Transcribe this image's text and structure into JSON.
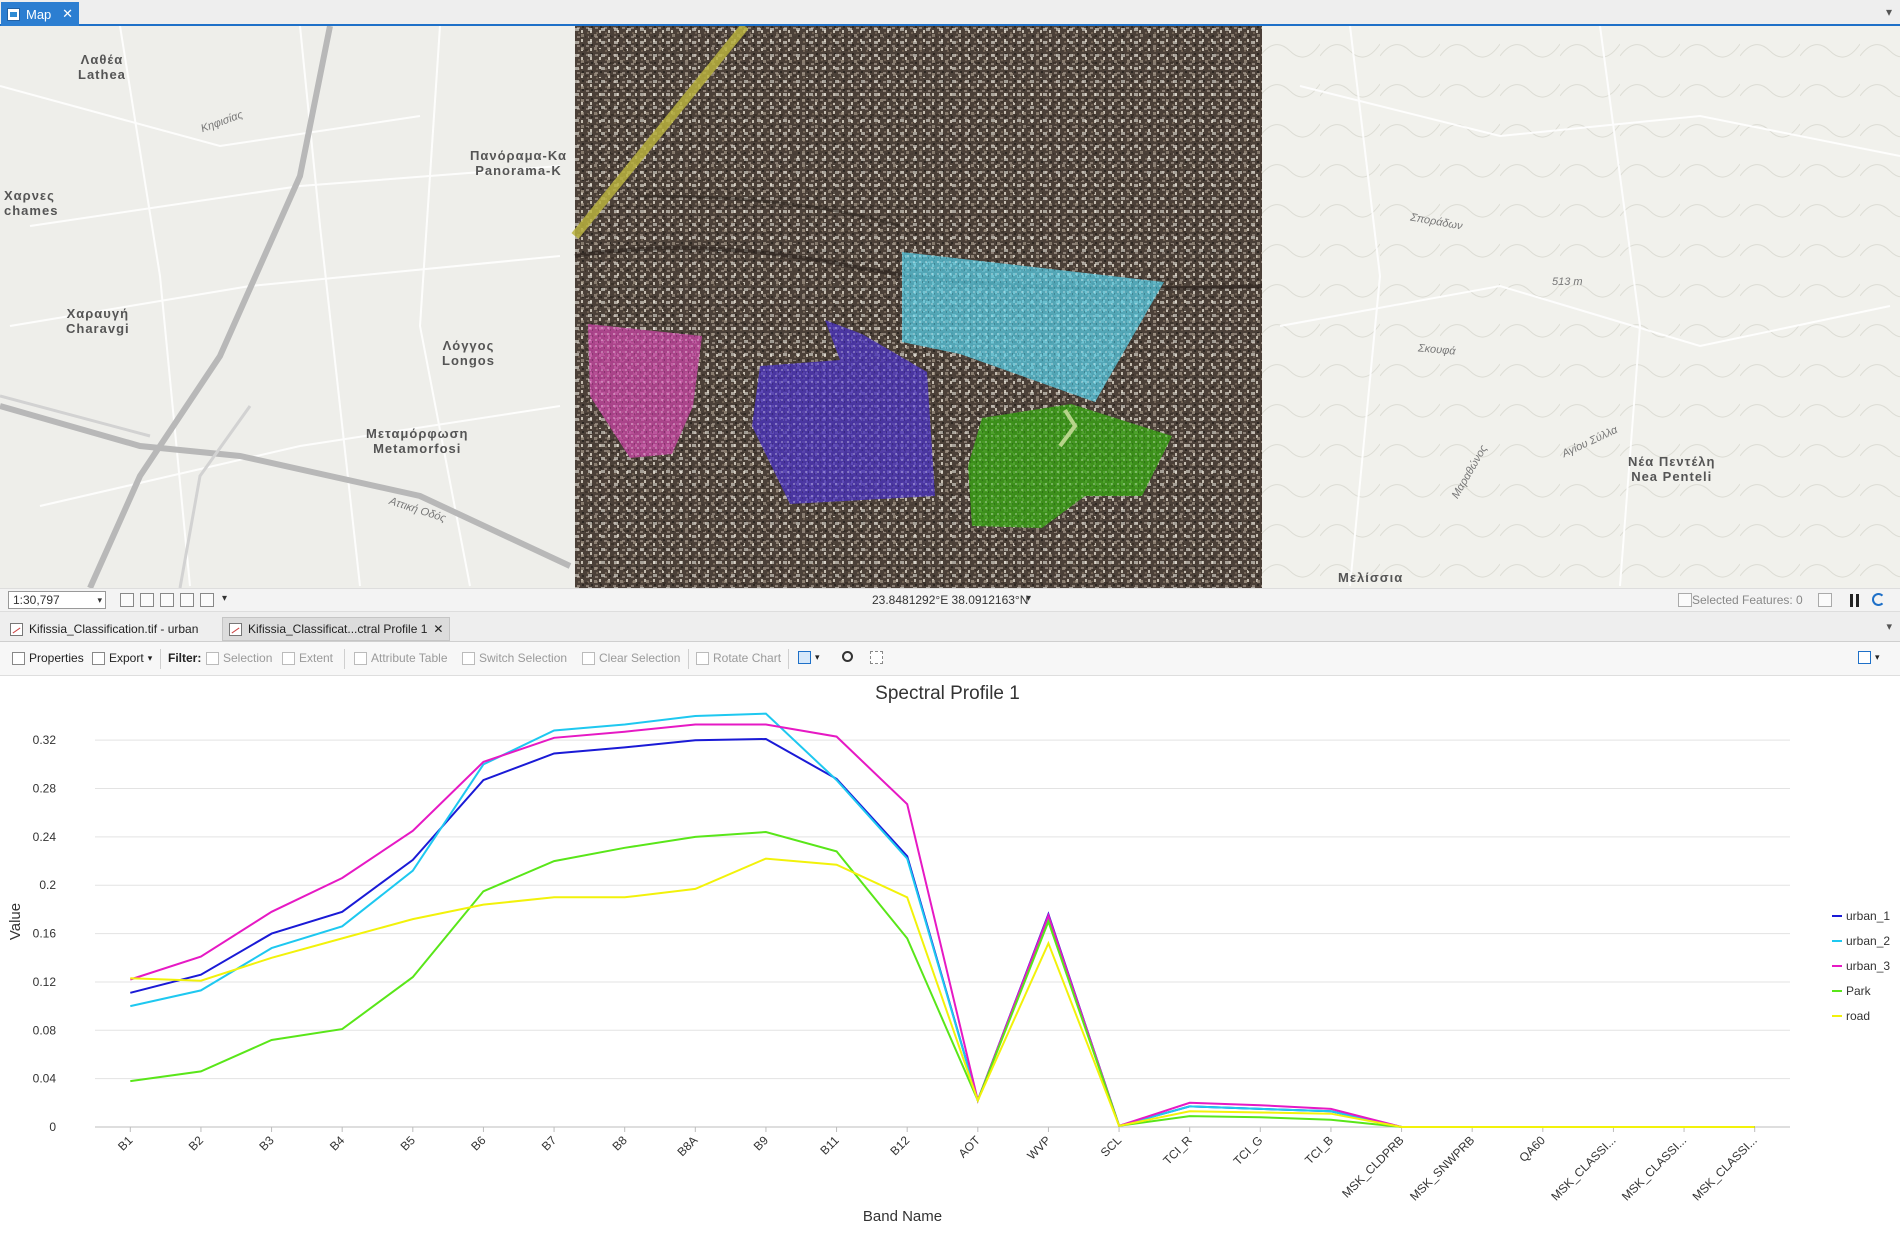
{
  "window": {
    "tab_label": "Map"
  },
  "map": {
    "place_labels": [
      {
        "greek": "Λαθέα",
        "latin": "Lathea"
      },
      {
        "greek": "Χαρνες",
        "latin": "chames"
      },
      {
        "greek": "Πανόραμα-Κα",
        "latin": "Panorama-K"
      },
      {
        "greek": "Χαραυγή",
        "latin": "Charavgi"
      },
      {
        "greek": "Λόγγος",
        "latin": "Longos"
      },
      {
        "greek": "Μεταμόρφωση",
        "latin": "Metamorfosi"
      },
      {
        "greek": "Νέα Πεντέλη",
        "latin": "Nea Penteli"
      },
      {
        "greek": "Μελίσσια",
        "latin": ""
      }
    ],
    "road_labels": [
      "Αττική Οδός",
      "Κηφισίας",
      "Σποράδων",
      "Αγίου Σύλλα",
      "Μαραθώνος",
      "Σκουφά"
    ],
    "elevation_label": "513 m",
    "polygon_colors": {
      "cyan": "#55c8e0",
      "purple": "#4a35b8",
      "magenta": "#c2459f",
      "green": "#3a9d16"
    }
  },
  "statusbar": {
    "scale": "1:30,797",
    "coordinates": "23.8481292°E 38.0912163°N",
    "selected_features": "Selected Features: 0"
  },
  "view_tabs": [
    {
      "label": "Kifissia_Classification.tif - urban"
    },
    {
      "label": "Kifissia_Classificat...ctral Profile 1",
      "close": "✕"
    }
  ],
  "toolbar": {
    "properties": "Properties",
    "export": "Export",
    "filter_label": "Filter:",
    "selection": "Selection",
    "extent": "Extent",
    "attribute_table": "Attribute Table",
    "switch_selection": "Switch Selection",
    "clear_selection": "Clear Selection",
    "rotate_chart": "Rotate Chart"
  },
  "chart_data": {
    "type": "line",
    "title": "Spectral Profile 1",
    "xlabel": "Band Name",
    "ylabel": "Value",
    "ylim": [
      0,
      0.34
    ],
    "yticks": [
      "0",
      "0.04",
      "0.08",
      "0.12",
      "0.16",
      "0.2",
      "0.24",
      "0.28",
      "0.32"
    ],
    "grid": true,
    "legend_position": "right",
    "categories": [
      "B1",
      "B2",
      "B3",
      "B4",
      "B5",
      "B6",
      "B7",
      "B8",
      "B8A",
      "B9",
      "B11",
      "B12",
      "AOT",
      "WVP",
      "SCL",
      "TCI_R",
      "TCI_G",
      "TCI_B",
      "MSK_CLDPRB",
      "MSK_SNWPRB",
      "QA60",
      "MSK_CLASSI...",
      "MSK_CLASSI...",
      "MSK_CLASSI..."
    ],
    "series": [
      {
        "name": "urban_1",
        "color": "#1a1ad6",
        "values": [
          0.111,
          0.126,
          0.16,
          0.178,
          0.221,
          0.287,
          0.309,
          0.314,
          0.32,
          0.321,
          0.288,
          0.224,
          0.022,
          0.176,
          0.001,
          0.017,
          0.015,
          0.013,
          0,
          0,
          0,
          0,
          0,
          0
        ]
      },
      {
        "name": "urban_2",
        "color": "#1ec8f0",
        "values": [
          0.1,
          0.113,
          0.148,
          0.166,
          0.212,
          0.3,
          0.328,
          0.333,
          0.34,
          0.342,
          0.287,
          0.222,
          0.022,
          0.174,
          0.001,
          0.017,
          0.015,
          0.013,
          0,
          0,
          0,
          0,
          0,
          0
        ]
      },
      {
        "name": "urban_3",
        "color": "#e619c4",
        "values": [
          0.122,
          0.141,
          0.178,
          0.206,
          0.245,
          0.302,
          0.322,
          0.327,
          0.333,
          0.333,
          0.323,
          0.267,
          0.022,
          0.175,
          0.001,
          0.02,
          0.018,
          0.015,
          0,
          0,
          0,
          0,
          0,
          0
        ]
      },
      {
        "name": "Park",
        "color": "#59e619",
        "values": [
          0.038,
          0.046,
          0.072,
          0.081,
          0.124,
          0.195,
          0.22,
          0.231,
          0.24,
          0.244,
          0.228,
          0.156,
          0.022,
          0.17,
          0.001,
          0.009,
          0.008,
          0.006,
          0,
          0,
          0,
          0,
          0,
          0
        ]
      },
      {
        "name": "road",
        "color": "#f2f20a",
        "values": [
          0.123,
          0.121,
          0.14,
          0.156,
          0.172,
          0.184,
          0.19,
          0.19,
          0.197,
          0.222,
          0.217,
          0.19,
          0.022,
          0.152,
          0.001,
          0.013,
          0.012,
          0.011,
          0,
          0,
          0,
          0,
          0,
          0
        ]
      }
    ]
  }
}
